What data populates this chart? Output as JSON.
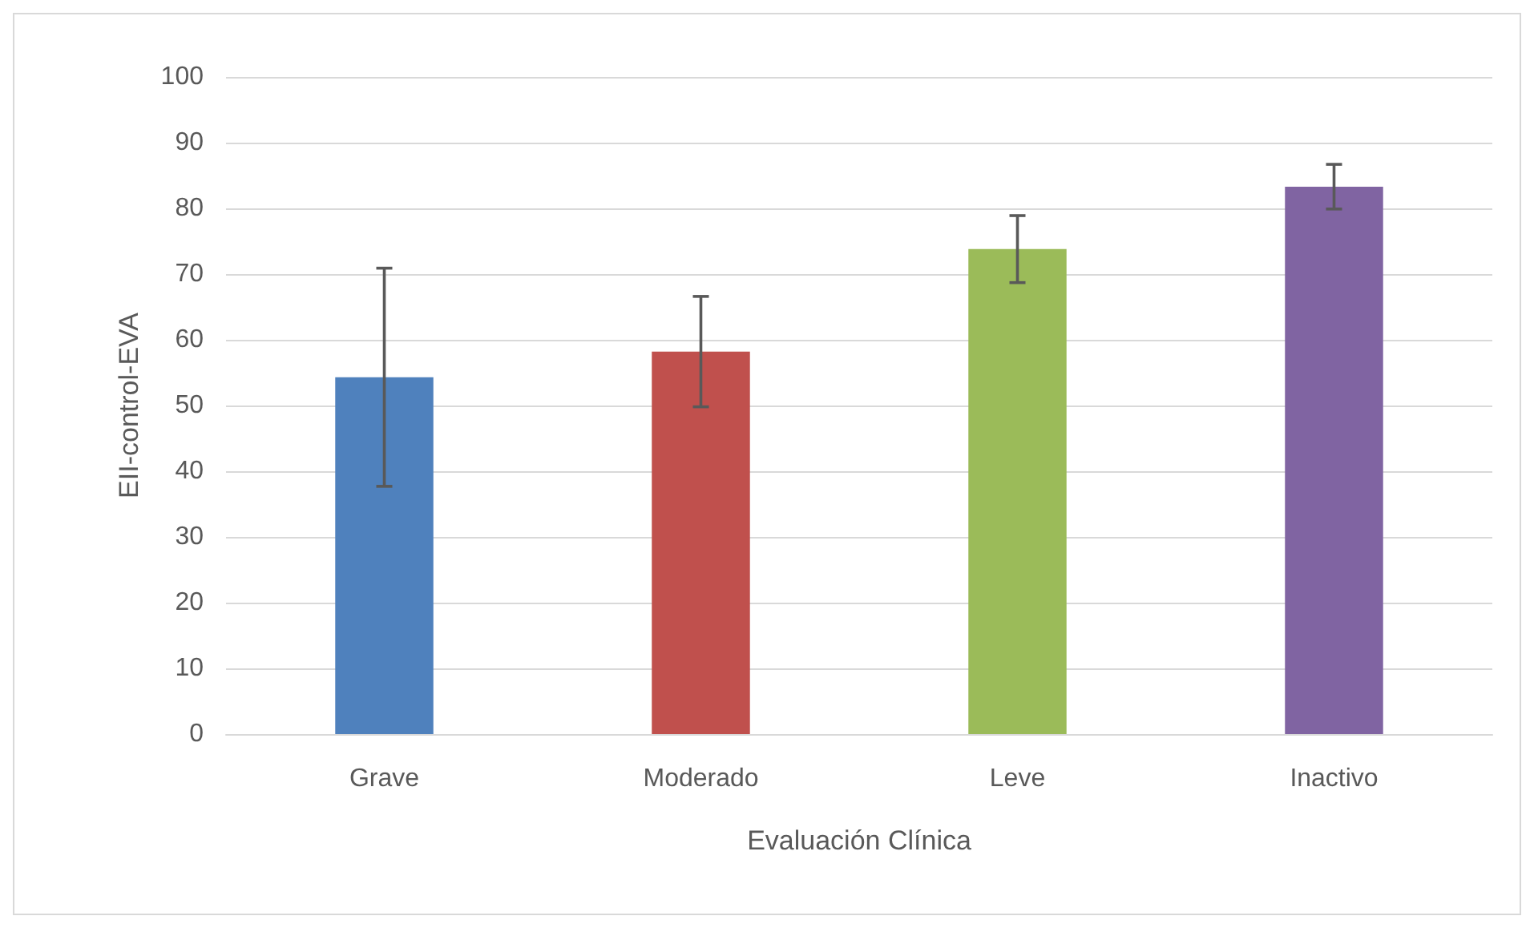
{
  "chart_data": {
    "type": "bar",
    "xlabel": "Evaluación Clínica",
    "ylabel": "EII-control-EVA",
    "categories": [
      "Grave",
      "Moderado",
      "Leve",
      "Inactivo"
    ],
    "values": [
      54.3,
      58.2,
      73.8,
      83.3
    ],
    "errors": [
      16.6,
      8.4,
      5.1,
      3.4
    ],
    "colors": [
      "#4f81bd",
      "#c0504d",
      "#9bbb59",
      "#8064a2"
    ],
    "ylim": [
      0,
      100
    ],
    "yticks": [
      0,
      10,
      20,
      30,
      40,
      50,
      60,
      70,
      80,
      90,
      100
    ],
    "grid": "y"
  }
}
